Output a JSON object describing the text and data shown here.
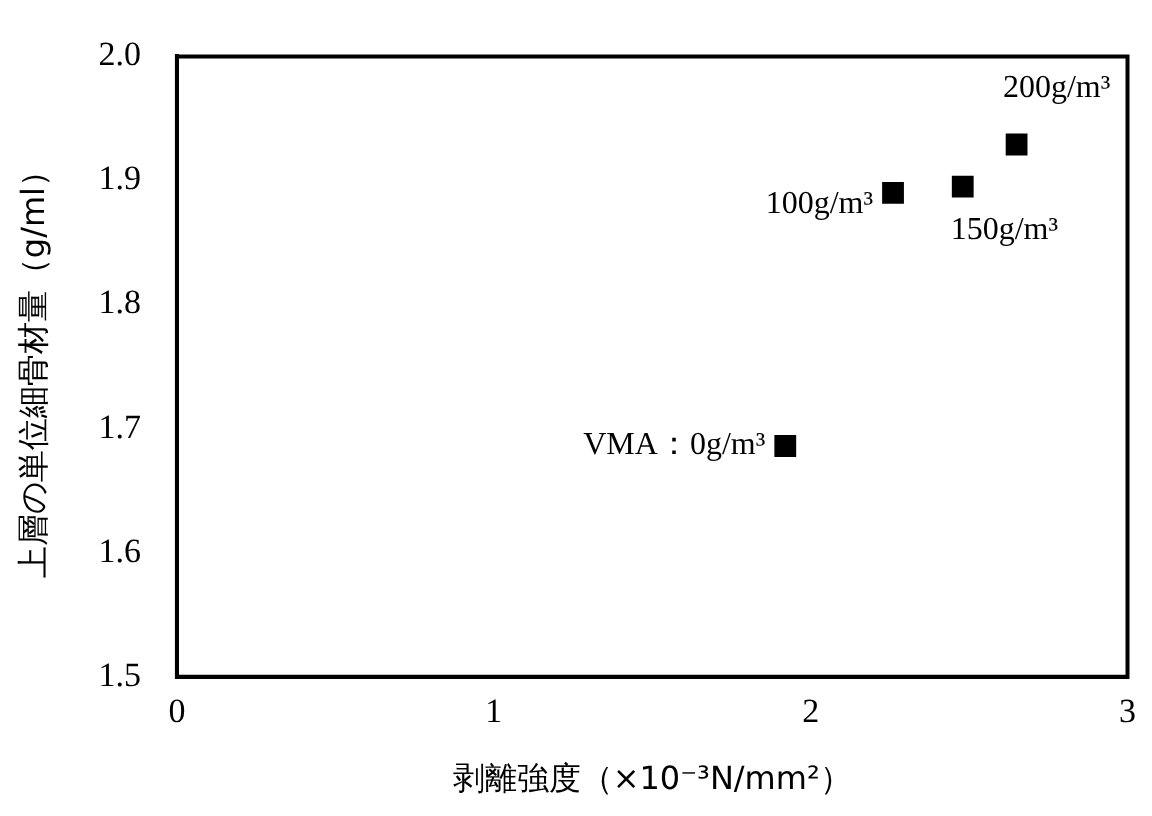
{
  "chart_data": {
    "type": "scatter",
    "xlabel": "剥離強度（×10⁻³N/mm²）",
    "ylabel": "上層の単位細骨材量（g/ml）",
    "x": [
      1.92,
      2.26,
      2.48,
      2.65
    ],
    "values": [
      1.686,
      1.89,
      1.895,
      1.929
    ],
    "color": "#000000",
    "marker": "square",
    "grid": false,
    "legend": false,
    "xlim": [
      0,
      3
    ],
    "xticks": [
      0,
      1,
      2,
      3
    ],
    "ylim": [
      1.5,
      2.0
    ],
    "yticks": [
      1.5,
      1.6,
      1.7,
      1.8,
      1.9,
      {
        "value": 2,
        "label": "2.0"
      }
    ],
    "annotations": [
      {
        "text": "VMA：0g/m³",
        "x": 1.92,
        "y": 1.686
      },
      {
        "text": "100g/m³",
        "x": 2.26,
        "y": 1.89
      },
      {
        "text": "150g/m³",
        "x": 2.48,
        "y": 1.895
      },
      {
        "text": "200g/m³",
        "x": 2.65,
        "y": 1.929
      }
    ]
  }
}
